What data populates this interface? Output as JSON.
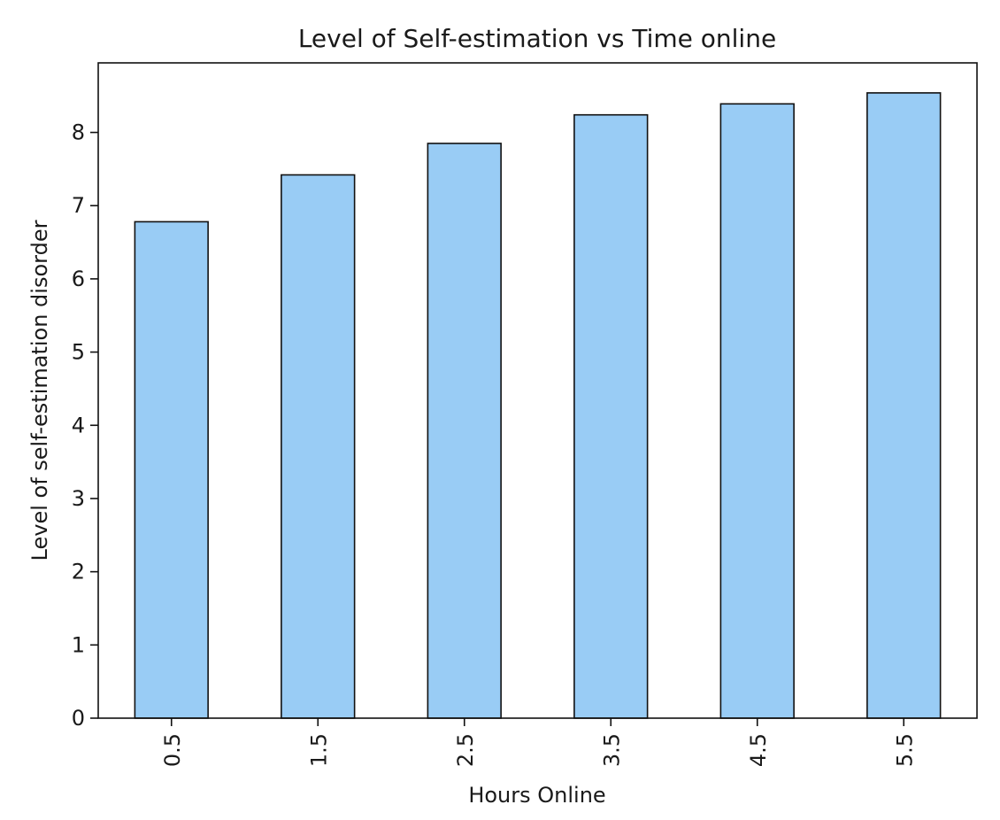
{
  "chart_data": {
    "type": "bar",
    "title": "Level of Self-estimation vs Time online",
    "xlabel": "Hours Online",
    "ylabel": "Level of self-estimation disorder",
    "categories": [
      "0.5",
      "1.5",
      "2.5",
      "3.5",
      "4.5",
      "5.5"
    ],
    "values": [
      6.78,
      7.42,
      7.85,
      8.24,
      8.39,
      8.54
    ],
    "ylim": [
      0,
      8.95
    ],
    "yticks": [
      0,
      1,
      2,
      3,
      4,
      5,
      6,
      7,
      8
    ],
    "grid": false,
    "legend": "none",
    "colors": {
      "bar_fill": "#99ccf5",
      "bar_edge": "#111111",
      "axis": "#111111",
      "text": "#1a1a1a"
    }
  }
}
